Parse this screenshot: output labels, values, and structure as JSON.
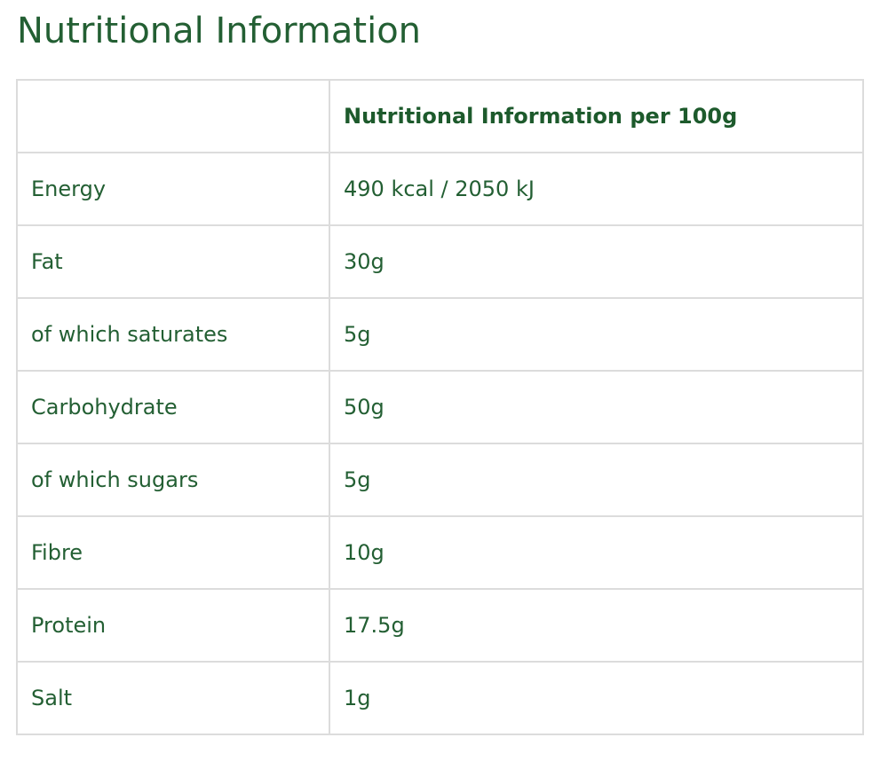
{
  "page": {
    "title": "Nutritional Information"
  },
  "table": {
    "header": {
      "label": "",
      "value": "Nutritional Information per 100g"
    },
    "rows": [
      {
        "label": "Energy",
        "value": "490 kcal / 2050 kJ"
      },
      {
        "label": "Fat",
        "value": "30g"
      },
      {
        "label": "of which saturates",
        "value": "5g"
      },
      {
        "label": "Carbohydrate",
        "value": "50g"
      },
      {
        "label": "of which sugars",
        "value": "5g"
      },
      {
        "label": "Fibre",
        "value": "10g"
      },
      {
        "label": "Protein",
        "value": "17.5g"
      },
      {
        "label": "Salt",
        "value": "1g"
      }
    ]
  },
  "colors": {
    "text": "#235f33",
    "border": "#dcdcdc",
    "background": "#ffffff"
  }
}
